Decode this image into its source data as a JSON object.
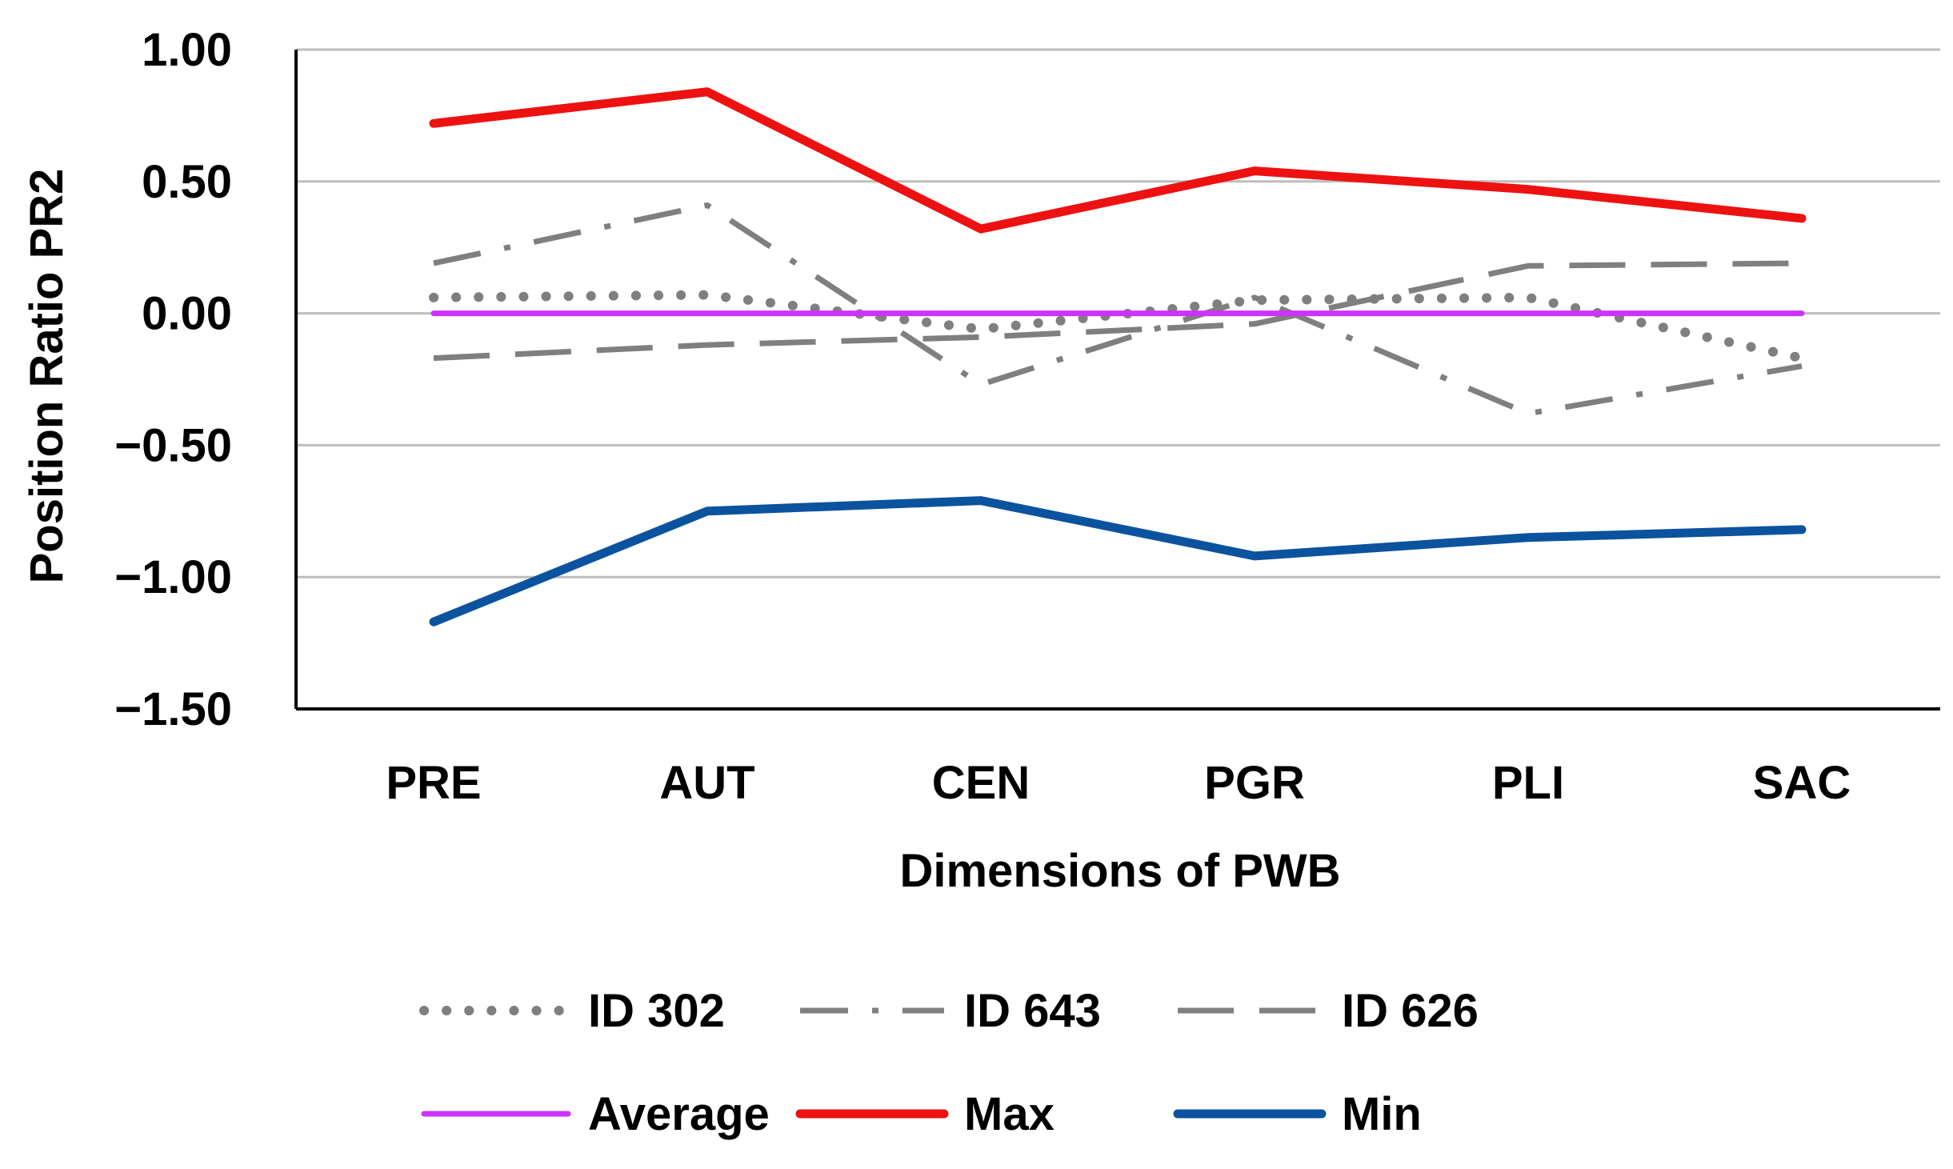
{
  "chart_data": {
    "type": "line",
    "title": "",
    "xlabel": "Dimensions of PWB",
    "ylabel": "Position Ratio PR2",
    "ylim": [
      -1.5,
      1.0
    ],
    "yticks": [
      1.0,
      0.5,
      0.0,
      -0.5,
      -1.0,
      -1.5
    ],
    "ytick_labels": [
      "1.00",
      "0.50",
      "0.00",
      "−0.50",
      "−1.00",
      "−1.50"
    ],
    "grid": true,
    "legend_position": "bottom",
    "categories": [
      "PRE",
      "AUT",
      "CEN",
      "PGR",
      "PLI",
      "SAC"
    ],
    "series": [
      {
        "name": "ID 302",
        "values": [
          0.06,
          0.07,
          -0.06,
          0.05,
          0.06,
          -0.17
        ],
        "color": "#7f7f7f",
        "style": "dotted"
      },
      {
        "name": "ID 643",
        "values": [
          0.19,
          0.41,
          -0.27,
          0.06,
          -0.38,
          -0.2
        ],
        "color": "#7f7f7f",
        "style": "dash-dot"
      },
      {
        "name": "ID 626",
        "values": [
          -0.17,
          -0.12,
          -0.09,
          -0.04,
          0.18,
          0.19
        ],
        "color": "#7f7f7f",
        "style": "long-dash"
      },
      {
        "name": "Average",
        "values": [
          0.0,
          0.0,
          0.0,
          0.0,
          0.0,
          0.0
        ],
        "color": "#cc33ff",
        "style": "solid"
      },
      {
        "name": "Max",
        "values": [
          0.72,
          0.84,
          0.32,
          0.54,
          0.47,
          0.36
        ],
        "color": "#ee1111",
        "style": "solid"
      },
      {
        "name": "Min",
        "values": [
          -1.17,
          -0.75,
          -0.71,
          -0.92,
          -0.85,
          -0.82
        ],
        "color": "#0b539e",
        "style": "solid"
      }
    ]
  }
}
